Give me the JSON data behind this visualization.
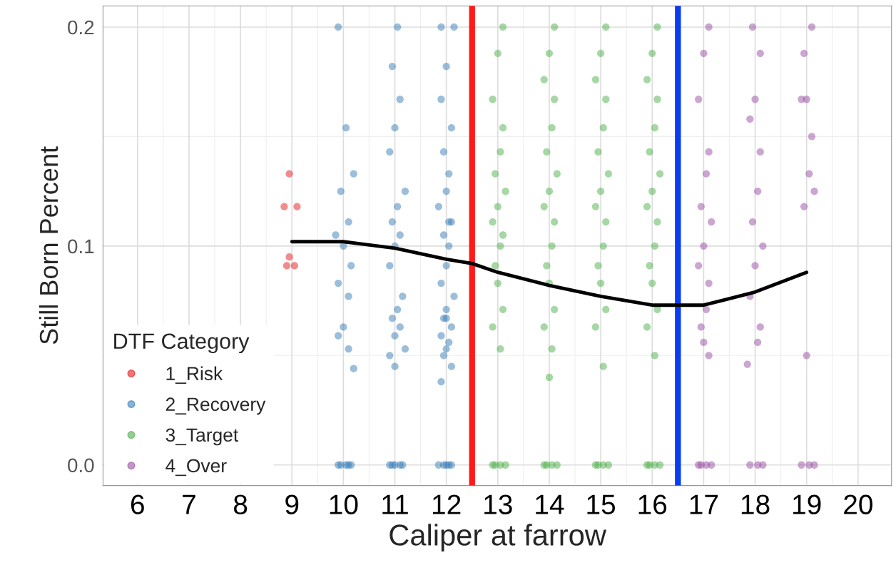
{
  "chart_data": {
    "type": "scatter",
    "xlabel": "Caliper at farrow",
    "ylabel": "Still Born Percent",
    "legend_title": "DTF Category",
    "legend": "bottom left",
    "grid": true,
    "marker": "circle",
    "xlim": [
      5.33,
      20.65
    ],
    "xticks": [
      6,
      7,
      8,
      9,
      10,
      11,
      12,
      13,
      14,
      15,
      16,
      17,
      18,
      19,
      20
    ],
    "ylim": [
      -0.0094,
      0.2097
    ],
    "yticks": [
      {
        "value": 0,
        "label": "0.0"
      },
      {
        "value": 0.1,
        "label": "0.1"
      },
      {
        "value": 0.2,
        "label": "0.2"
      }
    ],
    "ref_lines": [
      {
        "axis": "x",
        "value": 12.5,
        "color": "#ff1a1a"
      },
      {
        "axis": "x",
        "value": 16.5,
        "color": "#0a3cf0"
      }
    ],
    "series": [
      {
        "name": "1_Risk",
        "color": "#e41a1c",
        "x": [
          8.95,
          8.85,
          9.1,
          8.95,
          8.9,
          9.05
        ],
        "values": [
          0.133,
          0.118,
          0.118,
          0.095,
          0.091,
          0.091
        ]
      },
      {
        "name": "2_Recovery",
        "color": "#377eb8",
        "x": [
          9.9,
          10.05,
          10.15,
          9.95,
          10.1,
          9.9,
          10.05,
          10.2,
          9.95,
          10.1,
          9.85,
          10.0,
          10.15,
          9.9,
          10.1,
          10.0,
          9.9,
          10.1,
          10.2,
          10.95,
          11.1,
          11.0,
          10.9,
          11.15,
          11.05,
          10.95,
          11.1,
          11.0,
          10.9,
          11.2,
          11.05,
          10.95,
          11.1,
          11.0,
          10.9,
          11.15,
          11.05,
          10.95,
          11.1,
          11.0,
          11.2,
          10.9,
          11.0,
          11.85,
          12.0,
          12.1,
          11.95,
          12.05,
          11.9,
          12.15,
          12.0,
          11.9,
          12.1,
          11.95,
          12.05,
          12.0,
          11.85,
          12.1,
          11.95,
          12.05,
          12.0,
          11.9,
          12.15,
          12.0,
          11.95,
          12.1,
          11.9,
          12.05,
          12.0,
          11.95,
          12.1,
          11.9,
          12.0,
          12.05
        ],
        "values": [
          0,
          0,
          0,
          0,
          0,
          0.2,
          0.154,
          0.133,
          0.125,
          0.111,
          0.105,
          0.1,
          0.091,
          0.083,
          0.077,
          0.063,
          0.059,
          0.053,
          0.044,
          0,
          0,
          0,
          0,
          0,
          0.2,
          0.182,
          0.167,
          0.154,
          0.143,
          0.125,
          0.118,
          0.111,
          0.105,
          0.1,
          0.091,
          0.077,
          0.071,
          0.067,
          0.063,
          0.059,
          0.053,
          0.05,
          0.045,
          0,
          0,
          0,
          0,
          0,
          0.2,
          0.2,
          0.182,
          0.167,
          0.154,
          0.143,
          0.133,
          0.125,
          0.118,
          0.111,
          0.105,
          0.1,
          0.091,
          0.083,
          0.077,
          0.071,
          0.067,
          0.063,
          0.059,
          0.056,
          0.053,
          0.05,
          0.045,
          0.038,
          0.067,
          0.111
        ]
      },
      {
        "name": "3_Target",
        "color": "#4daf4a",
        "x": [
          12.9,
          13.05,
          13.15,
          12.95,
          13.1,
          13.0,
          12.9,
          13.1,
          13.05,
          12.95,
          13.15,
          13.0,
          12.9,
          13.1,
          13.05,
          12.95,
          13.0,
          13.1,
          12.9,
          13.05,
          13.9,
          14.05,
          14.15,
          13.95,
          14.1,
          14.0,
          13.9,
          14.1,
          14.05,
          13.95,
          14.15,
          14.0,
          13.9,
          14.1,
          14.05,
          13.95,
          14.0,
          14.1,
          13.9,
          14.05,
          14.0,
          14.9,
          15.05,
          15.15,
          14.95,
          15.1,
          15.0,
          14.9,
          15.1,
          15.05,
          14.95,
          15.15,
          15.0,
          14.9,
          15.1,
          15.05,
          14.95,
          15.0,
          15.1,
          14.9,
          15.05,
          15.9,
          16.05,
          16.15,
          15.95,
          16.1,
          16.0,
          15.9,
          16.1,
          16.05,
          15.95,
          16.15,
          16.0,
          15.9,
          16.1,
          16.05,
          15.95,
          16.0,
          16.1,
          15.9,
          16.05
        ],
        "values": [
          0,
          0,
          0,
          0,
          0.2,
          0.188,
          0.167,
          0.154,
          0.143,
          0.133,
          0.125,
          0.118,
          0.111,
          0.105,
          0.1,
          0.091,
          0.083,
          0.071,
          0.063,
          0.053,
          0,
          0,
          0,
          0,
          0.2,
          0.188,
          0.176,
          0.167,
          0.154,
          0.143,
          0.133,
          0.125,
          0.118,
          0.111,
          0.1,
          0.091,
          0.083,
          0.071,
          0.063,
          0.053,
          0.04,
          0,
          0,
          0,
          0,
          0.2,
          0.188,
          0.176,
          0.167,
          0.154,
          0.143,
          0.133,
          0.125,
          0.118,
          0.111,
          0.1,
          0.091,
          0.083,
          0.071,
          0.063,
          0.045,
          0,
          0,
          0,
          0,
          0.2,
          0.188,
          0.176,
          0.167,
          0.154,
          0.143,
          0.133,
          0.125,
          0.118,
          0.111,
          0.1,
          0.091,
          0.083,
          0.071,
          0.063,
          0.05
        ]
      },
      {
        "name": "4_Over",
        "color": "#984ea3",
        "x": [
          16.9,
          17.05,
          17.15,
          16.95,
          17.1,
          17.0,
          16.9,
          17.1,
          17.05,
          16.95,
          17.15,
          17.0,
          16.9,
          17.1,
          17.05,
          16.95,
          17.0,
          17.1,
          17.9,
          18.05,
          18.15,
          17.95,
          18.1,
          18.0,
          17.9,
          18.1,
          18.05,
          17.95,
          18.15,
          18.0,
          17.9,
          18.1,
          17.85,
          18.05,
          18.9,
          19.05,
          19.15,
          18.95,
          19.1,
          19.0,
          18.9,
          19.1,
          19.05,
          19.15,
          18.95,
          19.0
        ],
        "values": [
          0,
          0,
          0,
          0,
          0.2,
          0.188,
          0.167,
          0.143,
          0.133,
          0.118,
          0.111,
          0.1,
          0.091,
          0.083,
          0.071,
          0.063,
          0.056,
          0.05,
          0,
          0,
          0,
          0.2,
          0.188,
          0.167,
          0.158,
          0.143,
          0.125,
          0.111,
          0.1,
          0.091,
          0.077,
          0.063,
          0.046,
          0.056,
          0,
          0,
          0,
          0.188,
          0.2,
          0.167,
          0.167,
          0.15,
          0.133,
          0.125,
          0.118,
          0.05
        ]
      },
      {
        "type": "line",
        "marker": "none",
        "color": "#000000",
        "x": [
          9,
          10,
          11,
          12,
          12.5,
          13,
          14,
          15,
          16,
          16.5,
          17,
          18,
          19
        ],
        "values": [
          0.102,
          0.102,
          0.099,
          0.094,
          0.092,
          0.088,
          0.082,
          0.077,
          0.073,
          0.073,
          0.073,
          0.079,
          0.088
        ]
      }
    ]
  }
}
